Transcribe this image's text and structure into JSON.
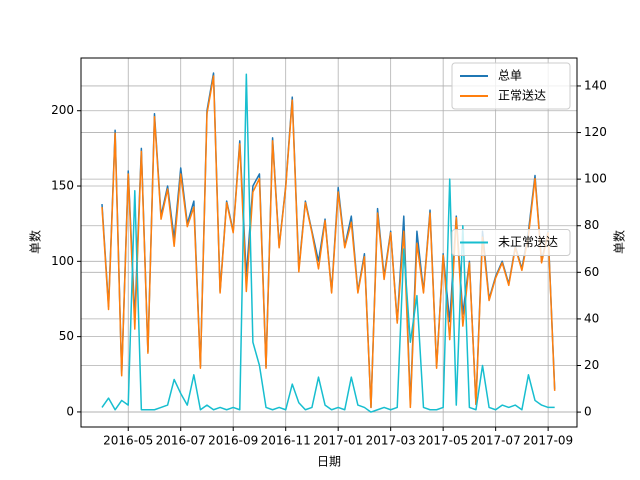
{
  "chart_data": {
    "type": "line",
    "xlabel": "日期",
    "ylabel": "单数",
    "y2label": "单数",
    "grid": true,
    "x": [
      3.0,
      3.25,
      3.5,
      3.75,
      4.0,
      4.25,
      4.5,
      4.75,
      5.0,
      5.25,
      5.5,
      5.75,
      6.0,
      6.25,
      6.5,
      6.75,
      7.0,
      7.25,
      7.5,
      7.75,
      8.0,
      8.25,
      8.5,
      8.75,
      9.0,
      9.25,
      9.5,
      9.75,
      10.0,
      10.25,
      10.5,
      10.75,
      11.0,
      11.25,
      11.5,
      11.75,
      12.0,
      12.25,
      12.5,
      12.75,
      13.0,
      13.25,
      13.5,
      13.75,
      14.0,
      14.25,
      14.5,
      14.75,
      15.0,
      15.25,
      15.5,
      15.75,
      16.0,
      16.25,
      16.5,
      16.75,
      17.0,
      17.25,
      17.5,
      17.75,
      18.0,
      18.25,
      18.5,
      18.75,
      19.0,
      19.25,
      19.5,
      19.75,
      20.0,
      20.25
    ],
    "xlim": [
      2.2,
      21.1
    ],
    "xticks": [
      {
        "value": 4,
        "label": "2016-05"
      },
      {
        "value": 6,
        "label": "2016-07"
      },
      {
        "value": 8,
        "label": "2016-09"
      },
      {
        "value": 10,
        "label": "2016-11"
      },
      {
        "value": 12,
        "label": "2017-01"
      },
      {
        "value": 14,
        "label": "2017-03"
      },
      {
        "value": 16,
        "label": "2017-05"
      },
      {
        "value": 18,
        "label": "2017-07"
      },
      {
        "value": 20,
        "label": "2017-09"
      }
    ],
    "ylim": [
      -10,
      235
    ],
    "yticks": [
      0,
      50,
      100,
      150,
      200
    ],
    "y2lim": [
      -6.4,
      152
    ],
    "y2ticks": [
      0,
      20,
      40,
      60,
      80,
      100,
      120,
      140
    ],
    "series": [
      {
        "name": "总单",
        "color": "#1f77b4",
        "legend": "upper right",
        "values": [
          138,
          70,
          187,
          25,
          160,
          62,
          175,
          40,
          198,
          130,
          150,
          115,
          162,
          125,
          140,
          30,
          200,
          225,
          80,
          140,
          120,
          180,
          90,
          150,
          158,
          30,
          182,
          110,
          150,
          209,
          95,
          140,
          120,
          100,
          128,
          80,
          149,
          110,
          130,
          80,
          105,
          3,
          135,
          90,
          120,
          60,
          130,
          5,
          120,
          80,
          134,
          30,
          105,
          60,
          130,
          65,
          100,
          5,
          120,
          75,
          90,
          100,
          85,
          110,
          95,
          120,
          157,
          100,
          120,
          15
        ]
      },
      {
        "name": "正常送达",
        "color": "#ff7f0e",
        "legend": "upper right",
        "values": [
          136,
          68,
          185,
          24,
          158,
          55,
          173,
          39,
          196,
          128,
          148,
          110,
          158,
          123,
          136,
          29,
          198,
          223,
          79,
          139,
          119,
          178,
          80,
          146,
          155,
          29,
          180,
          109,
          149,
          207,
          93,
          139,
          119,
          95,
          127,
          79,
          146,
          109,
          126,
          79,
          103,
          3,
          132,
          88,
          119,
          59,
          120,
          3,
          112,
          79,
          132,
          29,
          104,
          48,
          129,
          57,
          99,
          5,
          116,
          74,
          89,
          99,
          84,
          109,
          94,
          117,
          155,
          99,
          119,
          14
        ]
      },
      {
        "name": "未正常送达",
        "color": "#17becf",
        "axis": "y2",
        "legend": "center right",
        "values": [
          2,
          6,
          1,
          5,
          3,
          95,
          1,
          1,
          1,
          2,
          3,
          14,
          8,
          3,
          16,
          1,
          3,
          1,
          2,
          1,
          2,
          1,
          145,
          30,
          20,
          2,
          1,
          2,
          1,
          12,
          4,
          1,
          2,
          15,
          3,
          1,
          2,
          1,
          15,
          3,
          2,
          0,
          1,
          2,
          1,
          2,
          70,
          30,
          50,
          2,
          1,
          1,
          2,
          100,
          3,
          80,
          2,
          1,
          20,
          2,
          1,
          3,
          2,
          3,
          1,
          16,
          5,
          3,
          2,
          2
        ]
      }
    ]
  }
}
